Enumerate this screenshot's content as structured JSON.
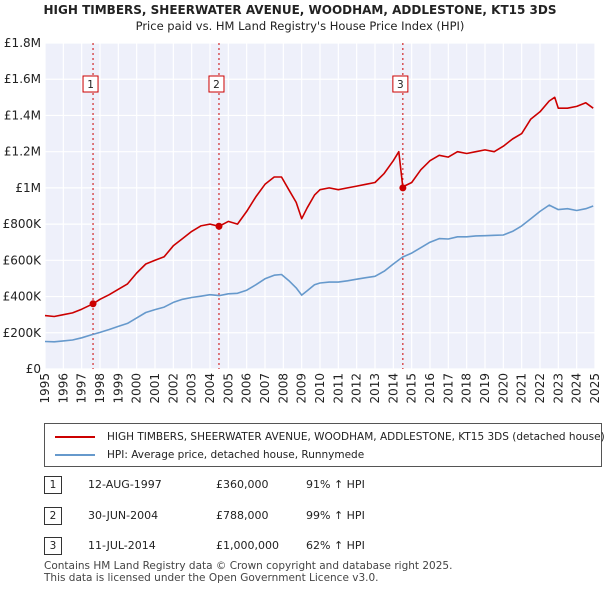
{
  "chart_data": {
    "type": "line",
    "title": "HIGH TIMBERS, SHEERWATER AVENUE, WOODHAM, ADDLESTONE, KT15 3DS",
    "subtitle": "Price paid vs. HM Land Registry's House Price Index (HPI)",
    "y_ticks": [
      "£0",
      "£200K",
      "£400K",
      "£600K",
      "£800K",
      "£1M",
      "£1.2M",
      "£1.4M",
      "£1.6M",
      "£1.8M"
    ],
    "y_tick_values": [
      0,
      200000,
      400000,
      600000,
      800000,
      1000000,
      1200000,
      1400000,
      1600000,
      1800000
    ],
    "ylim": [
      0,
      1800000
    ],
    "xlim": [
      1995,
      2025
    ],
    "x_ticks": [
      "1995",
      "1996",
      "1997",
      "1998",
      "1999",
      "2000",
      "2001",
      "2002",
      "2003",
      "2004",
      "2005",
      "2006",
      "2007",
      "2008",
      "2009",
      "2010",
      "2011",
      "2012",
      "2013",
      "2014",
      "2015",
      "2016",
      "2017",
      "2018",
      "2019",
      "2020",
      "2021",
      "2022",
      "2023",
      "2024",
      "2025"
    ],
    "grid": true,
    "series": [
      {
        "name": "HIGH TIMBERS, SHEERWATER AVENUE, WOODHAM, ADDLESTONE, KT15 3DS (detached house)",
        "color": "#cc0000",
        "x": [
          1995.0,
          1995.5,
          1996.0,
          1996.5,
          1997.0,
          1997.62,
          1998.0,
          1998.5,
          1999.0,
          1999.5,
          2000.0,
          2000.5,
          2001.0,
          2001.5,
          2002.0,
          2002.5,
          2003.0,
          2003.5,
          2004.0,
          2004.49,
          2005.0,
          2005.5,
          2006.0,
          2006.5,
          2007.0,
          2007.5,
          2007.9,
          2008.3,
          2008.7,
          2009.0,
          2009.3,
          2009.7,
          2010.0,
          2010.5,
          2011.0,
          2011.5,
          2012.0,
          2012.5,
          2013.0,
          2013.5,
          2014.0,
          2014.3,
          2014.52,
          2014.6,
          2015.0,
          2015.5,
          2016.0,
          2016.5,
          2017.0,
          2017.5,
          2018.0,
          2018.5,
          2019.0,
          2019.5,
          2020.0,
          2020.5,
          2021.0,
          2021.5,
          2022.0,
          2022.5,
          2022.8,
          2023.0,
          2023.5,
          2024.0,
          2024.5,
          2024.9
        ],
        "values": [
          295000,
          290000,
          300000,
          310000,
          330000,
          360000,
          385000,
          410000,
          440000,
          470000,
          530000,
          580000,
          600000,
          620000,
          680000,
          720000,
          760000,
          790000,
          800000,
          788000,
          815000,
          800000,
          870000,
          950000,
          1020000,
          1060000,
          1060000,
          990000,
          920000,
          830000,
          890000,
          960000,
          990000,
          1000000,
          990000,
          1000000,
          1010000,
          1020000,
          1030000,
          1080000,
          1150000,
          1200000,
          1000000,
          1010000,
          1030000,
          1100000,
          1150000,
          1180000,
          1170000,
          1200000,
          1190000,
          1200000,
          1210000,
          1200000,
          1230000,
          1270000,
          1300000,
          1380000,
          1420000,
          1480000,
          1500000,
          1440000,
          1440000,
          1450000,
          1470000,
          1440000
        ]
      },
      {
        "name": "HPI: Average price, detached house, Runnymede",
        "color": "#6699cc",
        "x": [
          1995.0,
          1995.5,
          1996.0,
          1996.5,
          1997.0,
          1997.5,
          1998.0,
          1998.5,
          1999.0,
          1999.5,
          2000.0,
          2000.5,
          2001.0,
          2001.5,
          2002.0,
          2002.5,
          2003.0,
          2003.5,
          2004.0,
          2004.5,
          2005.0,
          2005.5,
          2006.0,
          2006.5,
          2007.0,
          2007.5,
          2007.9,
          2008.3,
          2008.7,
          2009.0,
          2009.3,
          2009.7,
          2010.0,
          2010.5,
          2011.0,
          2011.5,
          2012.0,
          2012.5,
          2013.0,
          2013.5,
          2014.0,
          2014.5,
          2015.0,
          2015.5,
          2016.0,
          2016.5,
          2017.0,
          2017.5,
          2018.0,
          2018.5,
          2019.0,
          2019.5,
          2020.0,
          2020.5,
          2021.0,
          2021.5,
          2022.0,
          2022.5,
          2023.0,
          2023.5,
          2024.0,
          2024.5,
          2024.9
        ],
        "values": [
          152000,
          150000,
          155000,
          160000,
          172000,
          188000,
          202000,
          218000,
          235000,
          252000,
          282000,
          312000,
          328000,
          342000,
          368000,
          385000,
          395000,
          402000,
          410000,
          405000,
          415000,
          418000,
          435000,
          465000,
          498000,
          518000,
          522000,
          488000,
          448000,
          408000,
          432000,
          465000,
          475000,
          480000,
          480000,
          487000,
          496000,
          504000,
          512000,
          540000,
          580000,
          618000,
          640000,
          670000,
          700000,
          720000,
          718000,
          730000,
          730000,
          735000,
          736000,
          738000,
          740000,
          760000,
          790000,
          830000,
          870000,
          905000,
          880000,
          885000,
          875000,
          885000,
          900000
        ]
      }
    ],
    "markers": [
      {
        "label": "1",
        "x": 1997.62,
        "value": 360000
      },
      {
        "label": "2",
        "x": 2004.49,
        "value": 788000
      },
      {
        "label": "3",
        "x": 2014.52,
        "value": 1000000
      }
    ]
  },
  "legend": {
    "line1": "HIGH TIMBERS, SHEERWATER AVENUE, WOODHAM, ADDLESTONE, KT15 3DS (detached house)",
    "line2": "HPI: Average price, detached house, Runnymede"
  },
  "transactions": [
    {
      "num": "1",
      "date": "12-AUG-1997",
      "price": "£360,000",
      "hpi": "91% ↑ HPI"
    },
    {
      "num": "2",
      "date": "30-JUN-2004",
      "price": "£788,000",
      "hpi": "99% ↑ HPI"
    },
    {
      "num": "3",
      "date": "11-JUL-2014",
      "price": "£1,000,000",
      "hpi": "62% ↑ HPI"
    }
  ],
  "footer": {
    "line1": "Contains HM Land Registry data © Crown copyright and database right 2025.",
    "line2": "This data is licensed under the Open Government Licence v3.0."
  }
}
